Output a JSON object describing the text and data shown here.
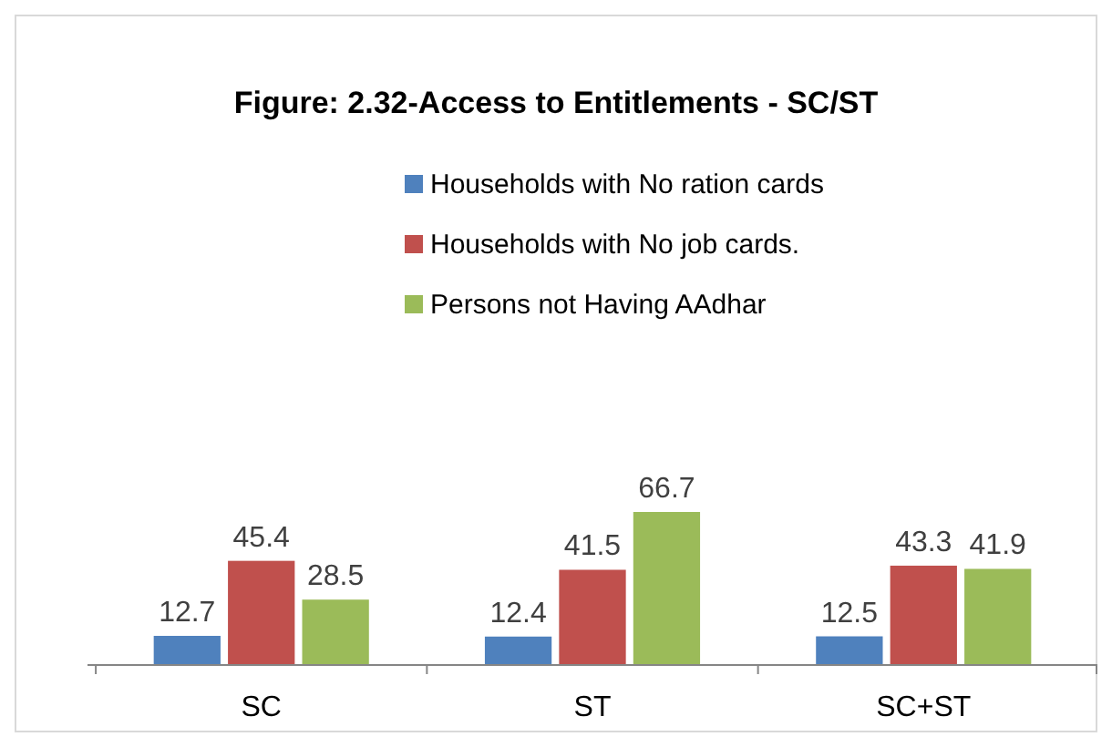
{
  "chart_data": {
    "type": "bar",
    "title": "Figure: 2.32-Access to Entitlements - SC/ST",
    "categories": [
      "SC",
      "ST",
      "SC+ST"
    ],
    "series": [
      {
        "name": "Households with No ration cards",
        "color": "#4f81bd",
        "values": [
          12.7,
          12.4,
          12.5
        ]
      },
      {
        "name": "Households with No job cards.",
        "color": "#c0504d",
        "values": [
          45.4,
          41.5,
          43.3
        ]
      },
      {
        "name": "Persons not Having AAdhar",
        "color": "#9bbb59",
        "values": [
          28.5,
          66.7,
          41.9
        ]
      }
    ],
    "data_labels": true,
    "legend": "top"
  }
}
